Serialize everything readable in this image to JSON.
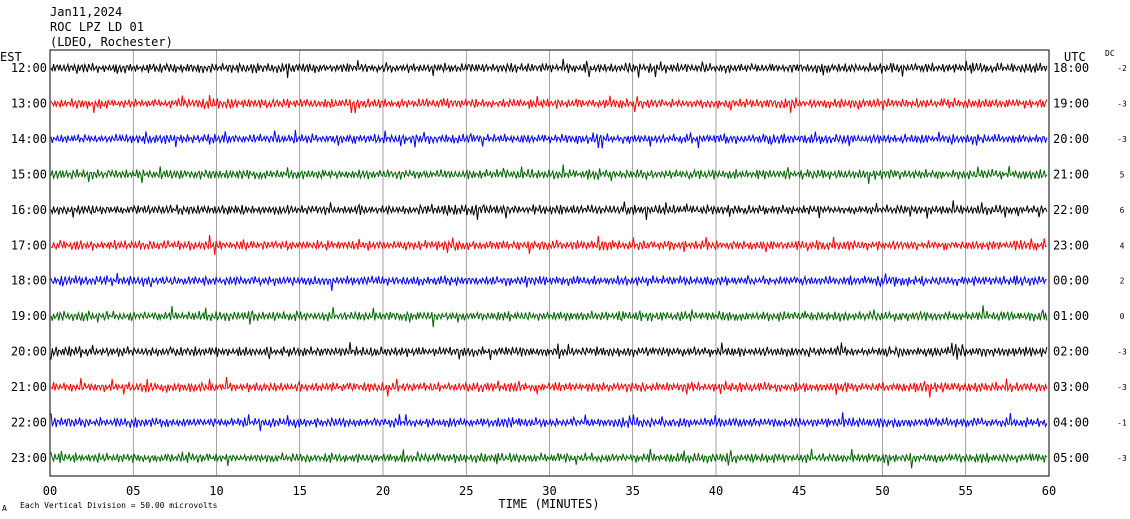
{
  "header": {
    "date": "Jan11,2024",
    "station": "ROC LPZ LD 01",
    "network": "(LDEO, Rochester)"
  },
  "chart_data": {
    "type": "line",
    "title": "Jan11,2024 ROC LPZ LD 01 (LDEO, Rochester)",
    "xlabel": "TIME (MINUTES)",
    "xlim": [
      0,
      60
    ],
    "x_ticks": [
      "00",
      "05",
      "10",
      "15",
      "20",
      "25",
      "30",
      "35",
      "40",
      "45",
      "50",
      "55",
      "60"
    ],
    "left_axis_label": "EST",
    "right_axis_label": "UTC",
    "dc_label": "DC",
    "scale_note": "Each Vertical Division =   50.00 microvolts",
    "corner_mark": "A",
    "grid": true,
    "trace_colors": [
      "#000000",
      "#ff0000",
      "#0000ff",
      "#006400"
    ],
    "rows": [
      {
        "est": "12:00",
        "utc": "18:00",
        "dc": "-2",
        "color": "#000000"
      },
      {
        "est": "13:00",
        "utc": "19:00",
        "dc": "-3",
        "color": "#ff0000"
      },
      {
        "est": "14:00",
        "utc": "20:00",
        "dc": "-3",
        "color": "#0000ff"
      },
      {
        "est": "15:00",
        "utc": "21:00",
        "dc": "5",
        "color": "#006400"
      },
      {
        "est": "16:00",
        "utc": "22:00",
        "dc": "6",
        "color": "#000000"
      },
      {
        "est": "17:00",
        "utc": "23:00",
        "dc": "4",
        "color": "#ff0000"
      },
      {
        "est": "18:00",
        "utc": "00:00",
        "dc": "2",
        "color": "#0000ff"
      },
      {
        "est": "19:00",
        "utc": "01:00",
        "dc": "0",
        "color": "#006400"
      },
      {
        "est": "20:00",
        "utc": "02:00",
        "dc": "-3",
        "color": "#000000"
      },
      {
        "est": "21:00",
        "utc": "03:00",
        "dc": "-3",
        "color": "#ff0000"
      },
      {
        "est": "22:00",
        "utc": "04:00",
        "dc": "-1",
        "color": "#0000ff"
      },
      {
        "est": "23:00",
        "utc": "05:00",
        "dc": "-3",
        "color": "#006400"
      }
    ]
  }
}
